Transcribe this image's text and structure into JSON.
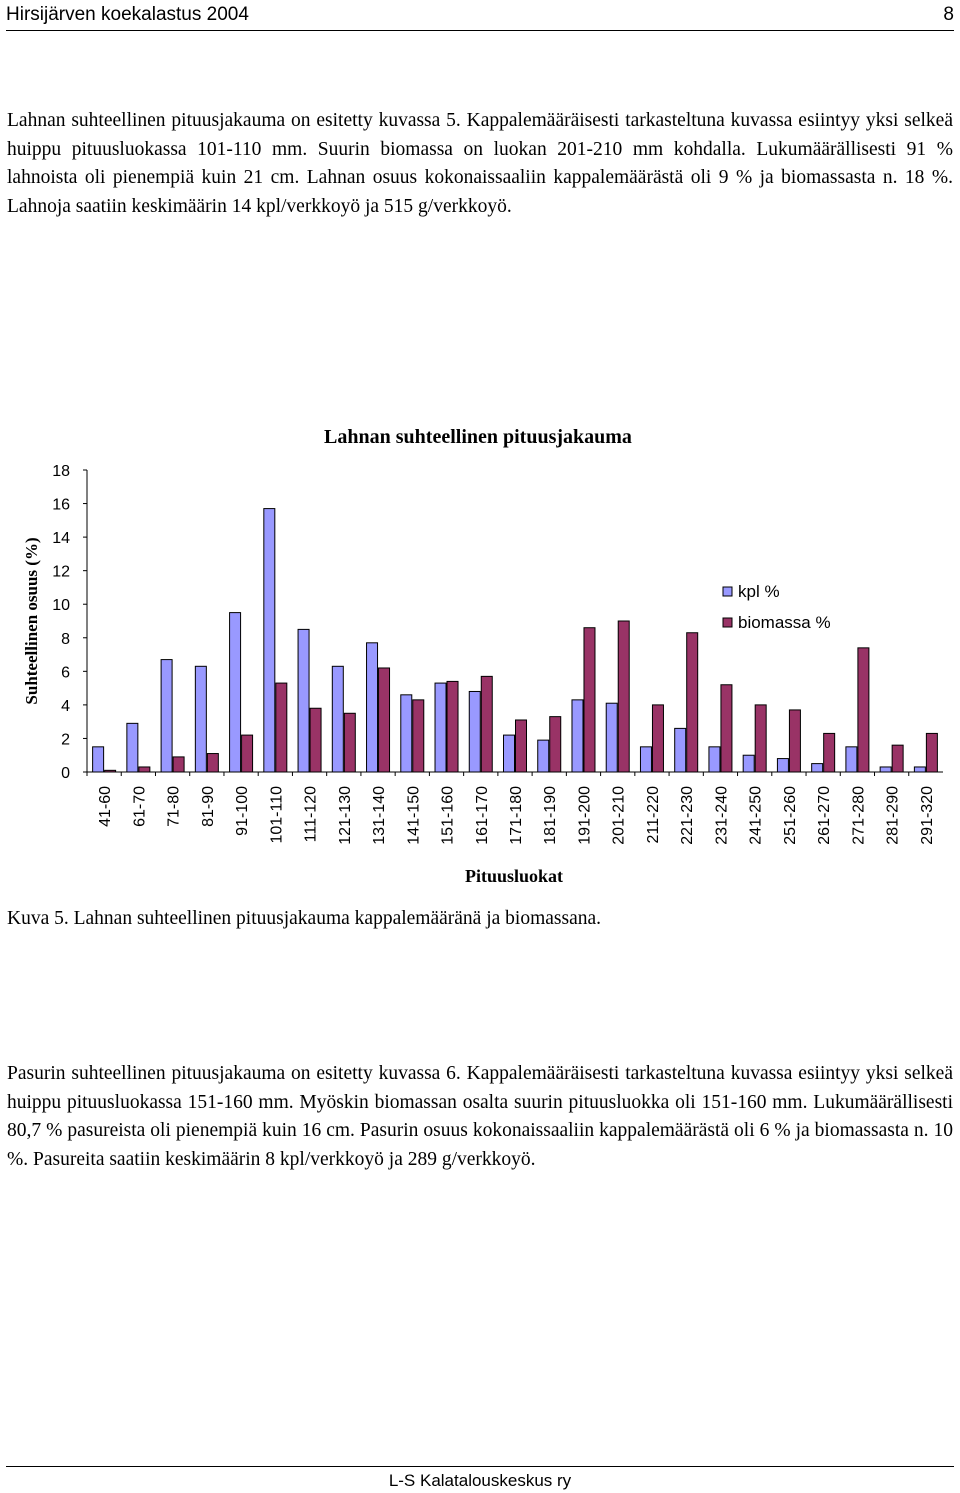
{
  "header": {
    "title": "Hirsijärven koekalastus 2004",
    "page_number": "8"
  },
  "paragraph1": "Lahnan suhteellinen pituusjakauma on esitetty kuvassa 5. Kappalemääräisesti tarkasteltuna kuvassa esiintyy yksi selkeä huippu pituusluokassa 101-110 mm. Suurin biomassa on luokan 201-210 mm kohdalla. Lukumäärällisesti 91 % lahnoista oli pienempiä kuin 21 cm. Lahnan osuus kokonaissaaliin kappalemäärästä oli 9 % ja biomassasta n. 18 %. Lahnoja saatiin keskimäärin 14 kpl/verkkoyö ja 515 g/verkkoyö.",
  "caption": "Kuva 5. Lahnan suhteellinen pituusjakauma kappalemääränä ja biomassana.",
  "paragraph2": "Pasurin suhteellinen pituusjakauma on esitetty kuvassa 6. Kappalemääräisesti tarkasteltuna kuvassa esiintyy yksi selkeä huippu pituusluokassa 151-160 mm. Myöskin biomassan osalta suurin pituusluokka oli 151-160 mm. Lukumäärällisesti 80,7 % pasureista oli pienempiä kuin 16 cm. Pasurin osuus kokonaissaaliin kappalemäärästä oli 6 % ja biomassasta n. 10 %. Pasureita saatiin keskimäärin 8 kpl/verkkoyö ja 289 g/verkkoyö.",
  "footer": "L-S Kalatalouskeskus ry",
  "chart_data": {
    "type": "bar",
    "title": "Lahnan suhteellinen pituusjakauma",
    "xlabel": "Pituusluokat",
    "ylabel": "Suhteellinen osuus (%)",
    "ylim": [
      0,
      18
    ],
    "yticks": [
      "0",
      "2",
      "4",
      "6",
      "8",
      "10",
      "12",
      "14",
      "16",
      "18"
    ],
    "grid": false,
    "legend_position": "right",
    "categories": [
      "41-60",
      "61-70",
      "71-80",
      "81-90",
      "91-100",
      "101-110",
      "111-120",
      "121-130",
      "131-140",
      "141-150",
      "151-160",
      "161-170",
      "171-180",
      "181-190",
      "191-200",
      "201-210",
      "211-220",
      "221-230",
      "231-240",
      "241-250",
      "251-260",
      "261-270",
      "271-280",
      "281-290",
      "291-320"
    ],
    "series": [
      {
        "name": "kpl %",
        "color": "#9999ff",
        "values": [
          1.5,
          2.9,
          6.7,
          6.3,
          9.5,
          15.7,
          8.5,
          6.3,
          7.7,
          4.6,
          5.3,
          4.8,
          2.2,
          1.9,
          4.3,
          4.1,
          1.5,
          2.6,
          1.5,
          1.0,
          0.8,
          0.5,
          1.5,
          0.3,
          0.3
        ]
      },
      {
        "name": "biomassa %",
        "color": "#993366",
        "values": [
          0.1,
          0.3,
          0.9,
          1.1,
          2.2,
          5.3,
          3.8,
          3.5,
          6.2,
          4.3,
          5.4,
          5.7,
          3.1,
          3.3,
          8.6,
          9.0,
          4.0,
          8.3,
          5.2,
          4.0,
          3.7,
          2.3,
          7.4,
          1.6,
          2.3
        ]
      }
    ]
  }
}
